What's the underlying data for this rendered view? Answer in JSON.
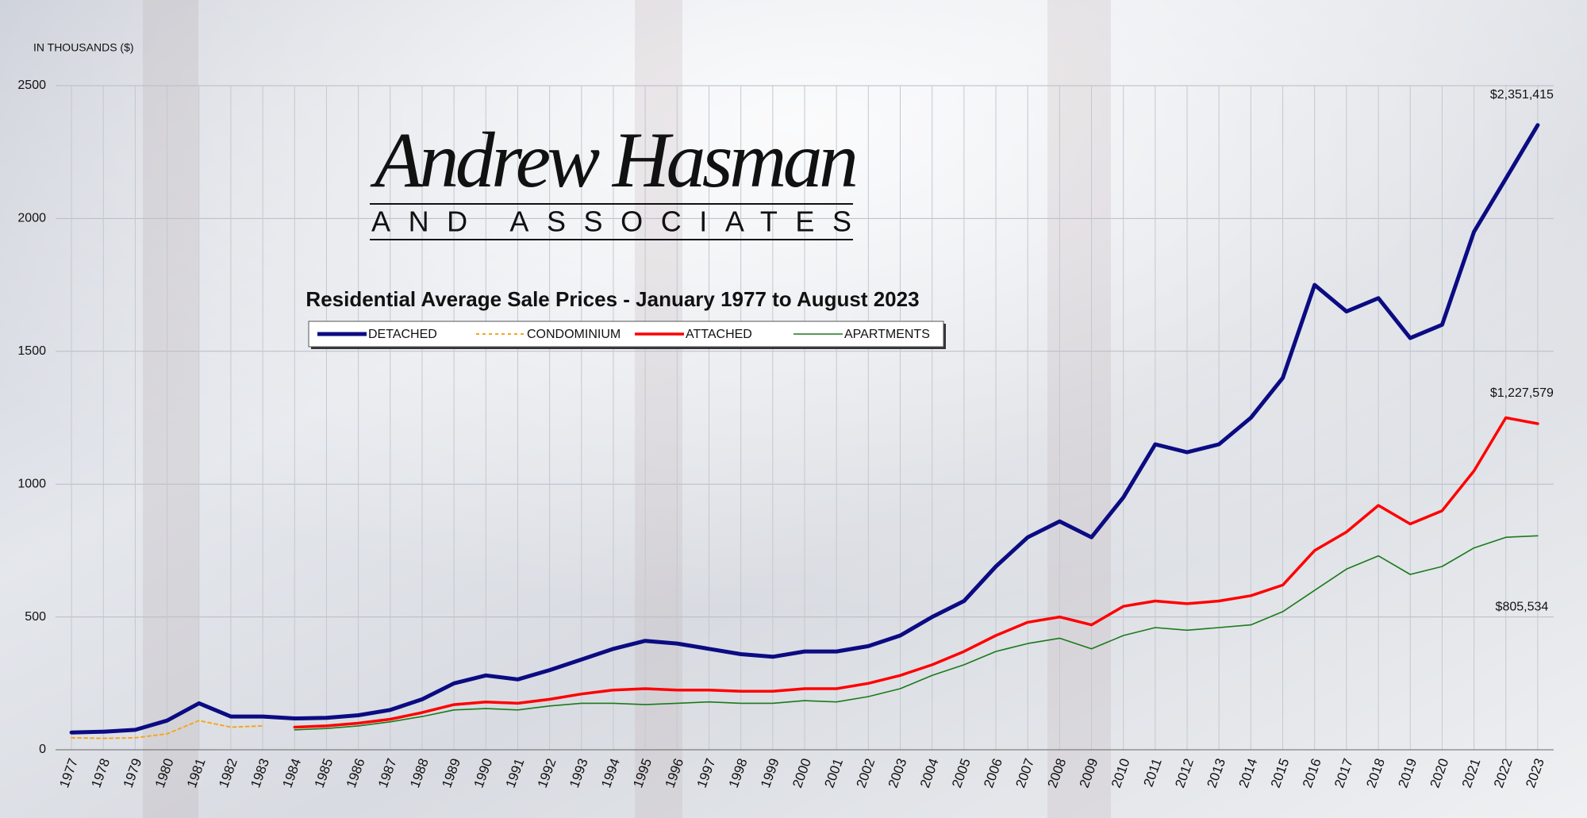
{
  "logo": {
    "name": "Andrew Hasman",
    "tagline": "AND ASSOCIATES"
  },
  "chart_data": {
    "type": "line",
    "title": "Residential Average Sale Prices  -  January 1977 to August 2023",
    "y_label": "IN THOUSANDS ($)",
    "categories": [
      "1977",
      "1978",
      "1979",
      "1980",
      "1981",
      "1982",
      "1983",
      "1984",
      "1985",
      "1986",
      "1987",
      "1988",
      "1989",
      "1990",
      "1991",
      "1992",
      "1993",
      "1994",
      "1995",
      "1996",
      "1997",
      "1998",
      "1999",
      "2000",
      "2001",
      "2002",
      "2003",
      "2004",
      "2005",
      "2006",
      "2007",
      "2008",
      "2009",
      "2010",
      "2011",
      "2012",
      "2013",
      "2014",
      "2015",
      "2016",
      "2017",
      "2018",
      "2019",
      "2020",
      "2021",
      "2022",
      "2023"
    ],
    "ylim": [
      0,
      2500
    ],
    "yticks": [
      0,
      500,
      1000,
      1500,
      2000,
      2500
    ],
    "grid": true,
    "legend": "top",
    "series": [
      {
        "name": "DETACHED",
        "color": "#0b0b82",
        "line_width": 5,
        "values": [
          65,
          68,
          75,
          110,
          175,
          125,
          125,
          118,
          120,
          130,
          150,
          190,
          250,
          280,
          265,
          300,
          340,
          380,
          410,
          400,
          380,
          360,
          350,
          370,
          370,
          390,
          430,
          500,
          560,
          690,
          800,
          860,
          800,
          950,
          1150,
          1120,
          1150,
          1250,
          1400,
          1750,
          1650,
          1700,
          1550,
          1600,
          1950,
          2150,
          2351.415
        ],
        "value_labels": [
          null,
          null,
          null,
          null,
          null,
          null,
          null,
          null,
          null,
          null,
          null,
          null,
          null,
          null,
          null,
          null,
          null,
          null,
          null,
          null,
          null,
          null,
          null,
          null,
          null,
          null,
          null,
          null,
          null,
          null,
          null,
          null,
          null,
          null,
          null,
          null,
          null,
          null,
          null,
          null,
          null,
          null,
          null,
          null,
          null,
          null,
          "$2,351,415"
        ]
      },
      {
        "name": "CONDOMINIUM",
        "color": "#f5a623",
        "line_width": 2,
        "line_style": "dashed",
        "values": [
          45,
          43,
          45,
          60,
          110,
          85,
          90,
          null,
          null,
          null,
          null,
          null,
          null,
          null,
          null,
          null,
          null,
          null,
          null,
          null,
          null,
          null,
          null,
          null,
          null,
          null,
          null,
          null,
          null,
          null,
          null,
          null,
          null,
          null,
          null,
          null,
          null,
          null,
          null,
          null,
          null,
          null,
          null,
          null,
          null,
          null,
          null
        ]
      },
      {
        "name": "ATTACHED",
        "color": "#ff0000",
        "line_width": 3.5,
        "values": [
          null,
          null,
          null,
          null,
          null,
          null,
          null,
          85,
          90,
          100,
          115,
          140,
          170,
          180,
          175,
          190,
          210,
          225,
          230,
          225,
          225,
          220,
          220,
          230,
          230,
          250,
          280,
          320,
          370,
          430,
          480,
          500,
          470,
          540,
          560,
          550,
          560,
          580,
          620,
          750,
          820,
          920,
          850,
          900,
          1050,
          1250,
          1227.579
        ],
        "value_labels": [
          null,
          null,
          null,
          null,
          null,
          null,
          null,
          null,
          null,
          null,
          null,
          null,
          null,
          null,
          null,
          null,
          null,
          null,
          null,
          null,
          null,
          null,
          null,
          null,
          null,
          null,
          null,
          null,
          null,
          null,
          null,
          null,
          null,
          null,
          null,
          null,
          null,
          null,
          null,
          null,
          null,
          null,
          null,
          null,
          null,
          null,
          "$1,227,579"
        ]
      },
      {
        "name": "APARTMENTS",
        "color": "#1a7a1a",
        "line_width": 1.6,
        "values": [
          null,
          null,
          null,
          null,
          null,
          null,
          null,
          75,
          80,
          90,
          105,
          125,
          150,
          155,
          150,
          165,
          175,
          175,
          170,
          175,
          180,
          175,
          175,
          185,
          180,
          200,
          230,
          280,
          320,
          370,
          400,
          420,
          380,
          430,
          460,
          450,
          460,
          470,
          520,
          600,
          680,
          730,
          660,
          690,
          760,
          800,
          805.534
        ],
        "value_labels": [
          null,
          null,
          null,
          null,
          null,
          null,
          null,
          null,
          null,
          null,
          null,
          null,
          null,
          null,
          null,
          null,
          null,
          null,
          null,
          null,
          null,
          null,
          null,
          null,
          null,
          null,
          null,
          null,
          null,
          null,
          null,
          null,
          null,
          null,
          null,
          null,
          null,
          null,
          null,
          null,
          null,
          null,
          null,
          null,
          null,
          null,
          "$805,534"
        ]
      }
    ]
  }
}
